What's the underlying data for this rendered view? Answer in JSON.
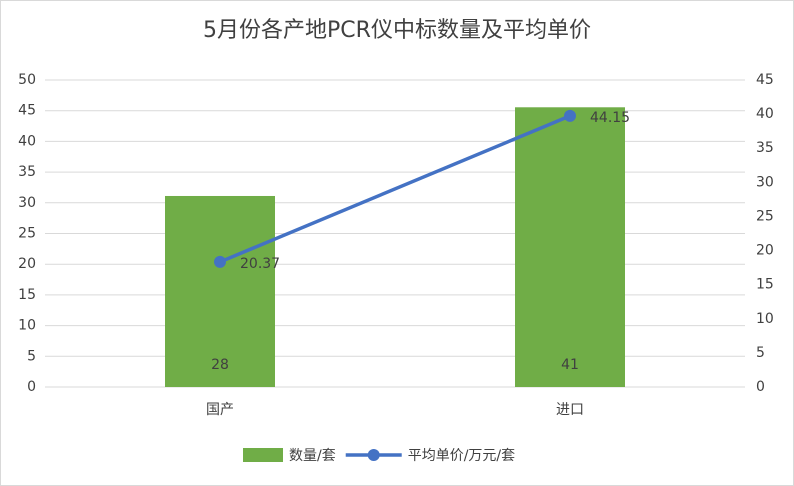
{
  "chart_data": {
    "type": "bar_line",
    "title": "5月份各产地PCR仪中标数量及平均单价",
    "categories": [
      "国产",
      "进口"
    ],
    "series": [
      {
        "name": "数量/套",
        "type": "bar",
        "color": "#70ad47",
        "axis": "y2",
        "values": [
          28,
          41
        ]
      },
      {
        "name": "平均单价/万元/套",
        "type": "line",
        "color": "#4472c4",
        "axis": "y",
        "values": [
          20.37,
          44.15
        ]
      }
    ],
    "ylim": [
      0,
      50
    ],
    "yticks": [
      0,
      5,
      10,
      15,
      20,
      25,
      30,
      35,
      40,
      45,
      50
    ],
    "y2lim": [
      0,
      45
    ],
    "y2ticks": [
      0,
      5,
      10,
      15,
      20,
      25,
      30,
      35,
      40,
      45
    ],
    "grid": true,
    "legend": "bottom"
  }
}
